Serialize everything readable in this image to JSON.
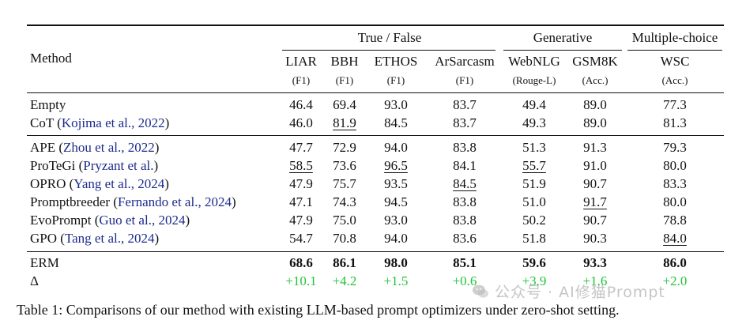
{
  "table": {
    "header": {
      "method_label": "Method",
      "groups": [
        {
          "label": "True / False"
        },
        {
          "label": "Generative"
        },
        {
          "label": "Multiple-choice"
        }
      ],
      "columns": [
        {
          "name": "LIAR",
          "metric": "(F1)"
        },
        {
          "name": "BBH",
          "metric": "(F1)"
        },
        {
          "name": "ETHOS",
          "metric": "(F1)"
        },
        {
          "name": "ArSarcasm",
          "metric": "(F1)"
        },
        {
          "name": "WebNLG",
          "metric": "(Rouge-L)"
        },
        {
          "name": "GSM8K",
          "metric": "(Acc.)"
        },
        {
          "name": "WSC",
          "metric": "(Acc.)"
        }
      ]
    },
    "rows": [
      {
        "method": "Empty",
        "cite": "",
        "values": [
          "46.4",
          "69.4",
          "93.0",
          "83.7",
          "49.4",
          "89.0",
          "77.3"
        ]
      },
      {
        "method": "CoT",
        "cite": "Kojima et al., 2022",
        "values": [
          "46.0",
          "81.9",
          "84.5",
          "83.7",
          "49.3",
          "89.0",
          "81.3"
        ]
      },
      {
        "method": "APE",
        "cite": "Zhou et al., 2022",
        "values": [
          "47.7",
          "72.9",
          "94.0",
          "83.8",
          "51.3",
          "91.3",
          "79.3"
        ]
      },
      {
        "method": "ProTeGi",
        "cite": "Pryzant et al.",
        "values": [
          "58.5",
          "73.6",
          "96.5",
          "84.1",
          "55.7",
          "91.0",
          "80.0"
        ]
      },
      {
        "method": "OPRO",
        "cite": "Yang et al., 2024",
        "values": [
          "47.9",
          "75.7",
          "93.5",
          "84.5",
          "51.9",
          "90.7",
          "83.3"
        ]
      },
      {
        "method": "Promptbreeder",
        "cite": "Fernando et al., 2024",
        "values": [
          "47.1",
          "74.3",
          "94.5",
          "83.8",
          "51.0",
          "91.7",
          "80.0"
        ]
      },
      {
        "method": "EvoPrompt",
        "cite": "Guo et al., 2024",
        "values": [
          "47.9",
          "75.0",
          "93.0",
          "83.8",
          "50.2",
          "90.7",
          "78.8"
        ]
      },
      {
        "method": "GPO",
        "cite": "Tang et al., 2024",
        "values": [
          "54.7",
          "70.8",
          "94.0",
          "83.6",
          "51.8",
          "90.3",
          "84.0"
        ]
      },
      {
        "method": "ERM",
        "cite": "",
        "values": [
          "68.6",
          "86.1",
          "98.0",
          "85.1",
          "59.6",
          "93.3",
          "86.0"
        ]
      },
      {
        "method": "Δ",
        "cite": "",
        "values": [
          "+10.1",
          "+4.2",
          "+1.5",
          "+0.6",
          "+3.9",
          "+1.6",
          "+2.0"
        ]
      }
    ]
  },
  "caption": "Table 1: Comparisons of our method with existing LLM-based prompt optimizers under zero-shot setting.",
  "watermark": "公众号 · AI修猫Prompt",
  "colors": {
    "citation": "#1c2a8c",
    "delta": "#22c43a"
  }
}
